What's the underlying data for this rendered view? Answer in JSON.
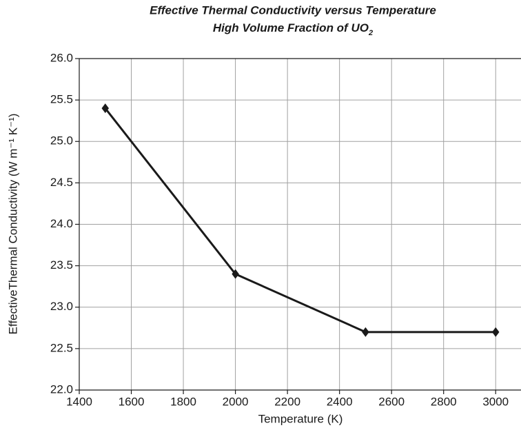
{
  "chart_data": {
    "type": "line",
    "title": "Effective Thermal Conductivity versus Temperature",
    "subtitle": {
      "text": "High Volume Fraction of UO",
      "sub": "2"
    },
    "x_label": "Temperature (K)",
    "y_label": "EffectiveThermal Conductivity (W m⁻¹ K⁻¹)",
    "x": [
      1500,
      2000,
      2500,
      3000
    ],
    "series": [
      {
        "name": "Effective Thermal Conductivity",
        "color": "#1a1a1a",
        "values": [
          25.4,
          23.4,
          22.7,
          22.7
        ]
      }
    ],
    "xlim": [
      1400,
      3100
    ],
    "xticks": [
      1400,
      1600,
      1800,
      2000,
      2200,
      2400,
      2600,
      2800,
      3000
    ],
    "ylim": [
      22,
      26
    ],
    "yticks": [
      {
        "value": 22,
        "label": "22.0"
      },
      {
        "value": 22.5,
        "label": "22.5"
      },
      {
        "value": 23,
        "label": "23.0"
      },
      {
        "value": 23.5,
        "label": "23.5"
      },
      {
        "value": 24,
        "label": "24.0"
      },
      {
        "value": 24.5,
        "label": "24.5"
      },
      {
        "value": 25,
        "label": "25.0"
      },
      {
        "value": 25.5,
        "label": "25.5"
      },
      {
        "value": 26,
        "label": "26.0"
      }
    ],
    "grid": true
  }
}
